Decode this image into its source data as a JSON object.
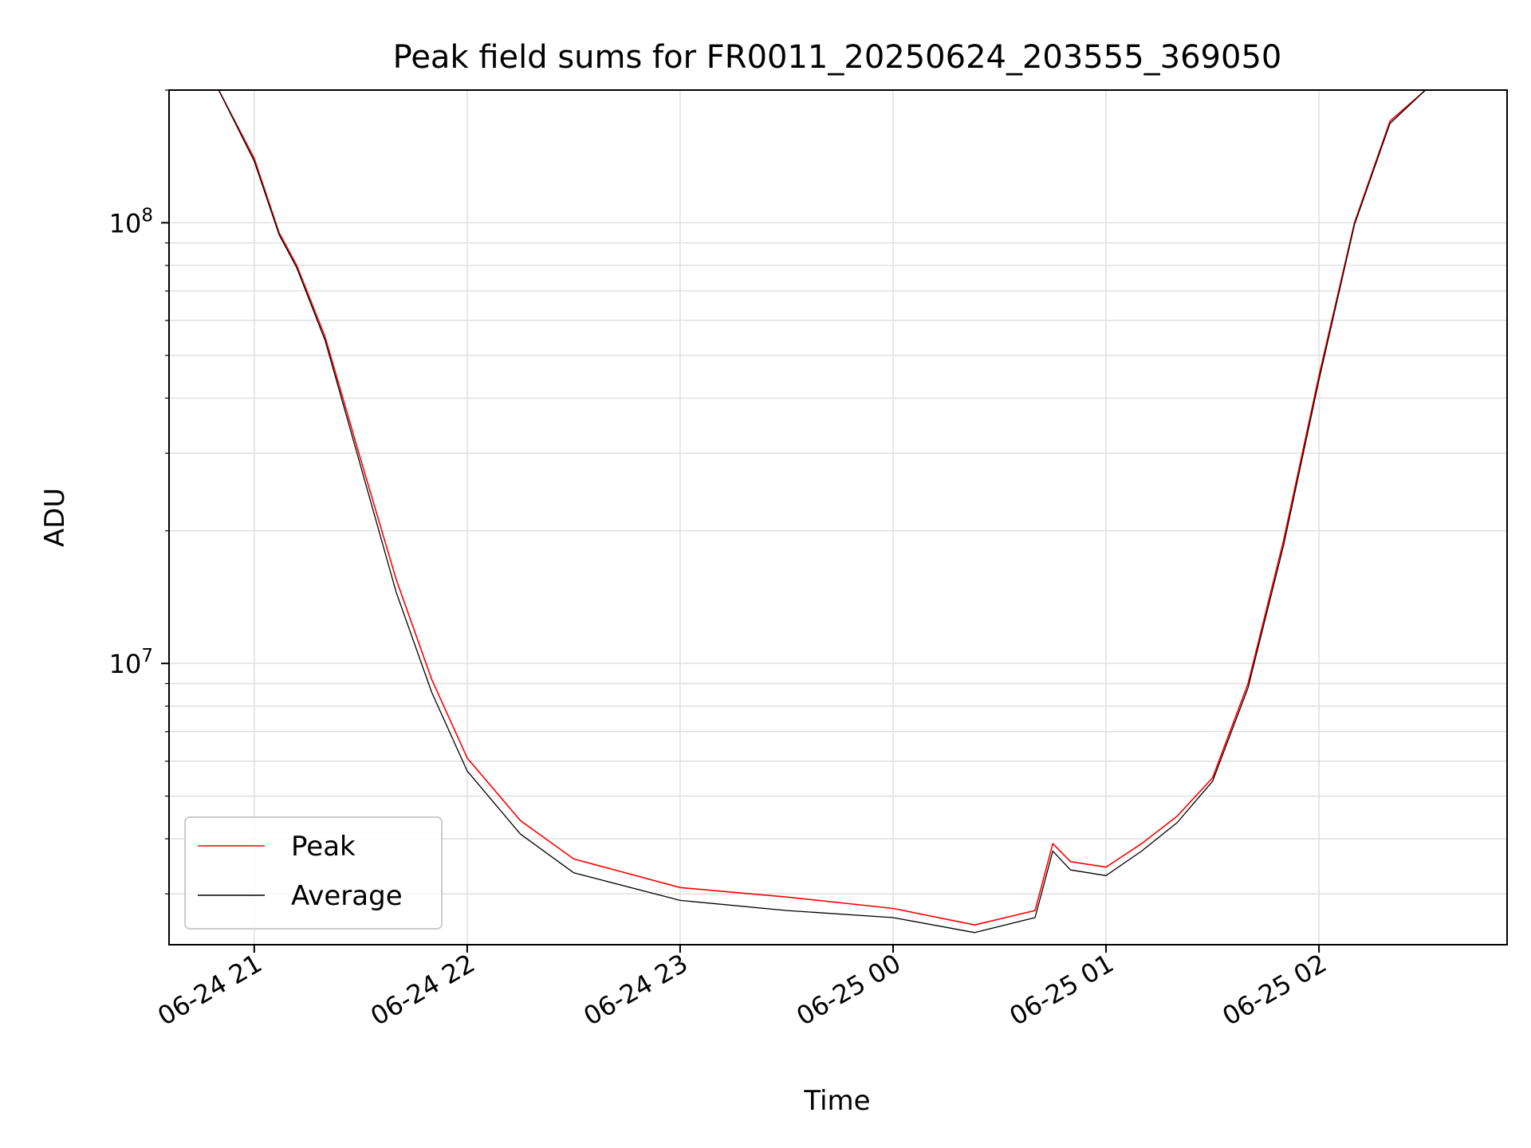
{
  "chart_data": {
    "type": "line",
    "title": "Peak field sums for FR0011_20250624_203555_369050",
    "xlabel": "Time",
    "ylabel": "ADU",
    "yscale": "log",
    "xlim": [
      "2025-06-24 20:36",
      "2025-06-25 02:53"
    ],
    "ylim": [
      2300000,
      200000000
    ],
    "grid": true,
    "legend_position": "lower-left",
    "x_ticks": [
      "06-24 21",
      "06-24 22",
      "06-24 23",
      "06-25 00",
      "06-25 01",
      "06-25 02"
    ],
    "x_tick_times": [
      "2025-06-24 21:00",
      "2025-06-24 22:00",
      "2025-06-24 23:00",
      "2025-06-25 00:00",
      "2025-06-25 01:00",
      "2025-06-25 02:00"
    ],
    "y_ticks": [
      {
        "base": "10",
        "exp": "7",
        "value": 10000000
      },
      {
        "base": "10",
        "exp": "8",
        "value": 100000000
      }
    ],
    "series": [
      {
        "name": "Peak",
        "color": "#ff0000",
        "x": [
          "2025-06-24 20:36",
          "2025-06-24 20:50",
          "2025-06-24 21:00",
          "2025-06-24 21:07",
          "2025-06-24 21:12",
          "2025-06-24 21:20",
          "2025-06-24 21:30",
          "2025-06-24 21:40",
          "2025-06-24 21:50",
          "2025-06-24 22:00",
          "2025-06-24 22:15",
          "2025-06-24 22:30",
          "2025-06-24 23:00",
          "2025-06-24 23:30",
          "2025-06-25 00:00",
          "2025-06-25 00:23",
          "2025-06-25 00:40",
          "2025-06-25 00:45",
          "2025-06-25 00:50",
          "2025-06-25 01:00",
          "2025-06-25 01:10",
          "2025-06-25 01:20",
          "2025-06-25 01:30",
          "2025-06-25 01:40",
          "2025-06-25 01:50",
          "2025-06-25 02:00",
          "2025-06-25 02:10",
          "2025-06-25 02:20",
          "2025-06-25 02:30",
          "2025-06-25 02:53"
        ],
        "values": [
          200000000,
          200000000,
          140000000,
          95000000,
          80000000,
          55000000,
          29000000,
          15500000,
          9200000,
          6100000,
          4400000,
          3600000,
          3100000,
          2950000,
          2780000,
          2550000,
          2750000,
          3900000,
          3550000,
          3450000,
          3900000,
          4500000,
          5500000,
          9000000,
          19000000,
          45000000,
          100000000,
          170000000,
          200000000,
          200000000
        ]
      },
      {
        "name": "Average",
        "color": "#000000",
        "x": [
          "2025-06-24 20:36",
          "2025-06-24 20:50",
          "2025-06-24 21:00",
          "2025-06-24 21:07",
          "2025-06-24 21:12",
          "2025-06-24 21:20",
          "2025-06-24 21:30",
          "2025-06-24 21:40",
          "2025-06-24 21:50",
          "2025-06-24 22:00",
          "2025-06-24 22:15",
          "2025-06-24 22:30",
          "2025-06-24 23:00",
          "2025-06-24 23:30",
          "2025-06-25 00:00",
          "2025-06-25 00:23",
          "2025-06-25 00:40",
          "2025-06-25 00:45",
          "2025-06-25 00:50",
          "2025-06-25 01:00",
          "2025-06-25 01:10",
          "2025-06-25 01:20",
          "2025-06-25 01:30",
          "2025-06-25 01:40",
          "2025-06-25 01:50",
          "2025-06-25 02:00",
          "2025-06-25 02:10",
          "2025-06-25 02:20",
          "2025-06-25 02:30",
          "2025-06-25 02:53"
        ],
        "values": [
          200000000,
          200000000,
          138000000,
          94000000,
          79000000,
          54000000,
          28000000,
          14500000,
          8600000,
          5700000,
          4100000,
          3350000,
          2900000,
          2750000,
          2650000,
          2450000,
          2650000,
          3750000,
          3400000,
          3300000,
          3750000,
          4350000,
          5400000,
          8800000,
          18500000,
          44000000,
          99000000,
          168000000,
          200000000,
          200000000
        ]
      }
    ]
  }
}
